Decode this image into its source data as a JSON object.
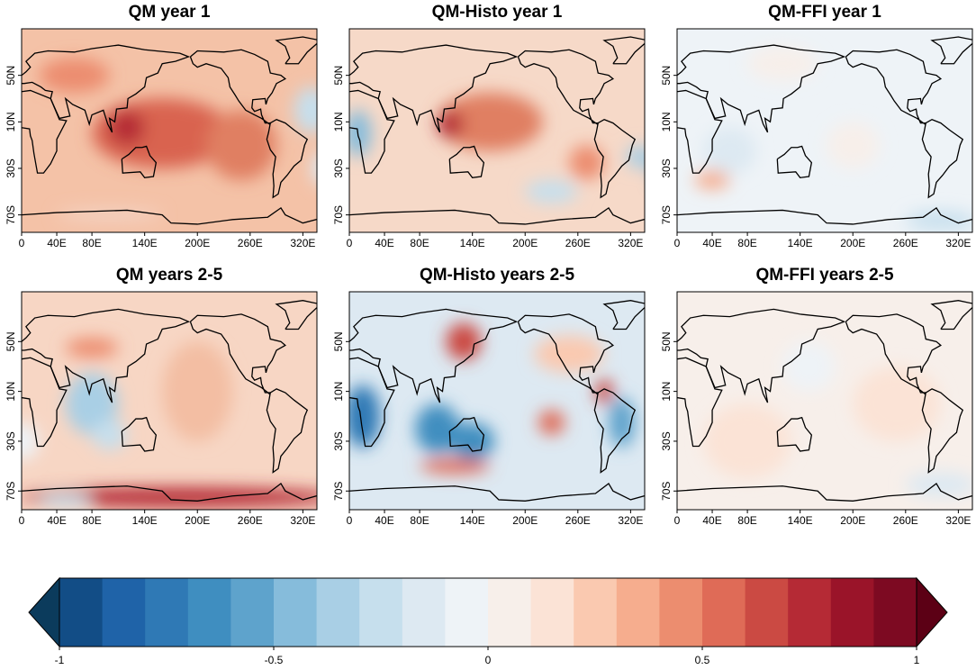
{
  "panels": [
    {
      "title": "QM year 1"
    },
    {
      "title": "QM-Histo year 1"
    },
    {
      "title": "QM-FFI year 1"
    },
    {
      "title": "QM years 2-5"
    },
    {
      "title": "QM-Histo years 2-5"
    },
    {
      "title": "QM-FFI years 2-5"
    }
  ],
  "xlim": [
    0,
    336
  ],
  "ylim": [
    -85,
    90
  ],
  "xticks": [
    0,
    {
      "value": 40,
      "label": "40E"
    },
    {
      "value": 80,
      "label": "80E"
    },
    {
      "value": 140,
      "label": "140E"
    },
    {
      "value": 200,
      "label": "200E"
    },
    {
      "value": 260,
      "label": "260E"
    },
    {
      "value": 320,
      "label": "320E"
    }
  ],
  "yticks": [
    {
      "value": 50,
      "label": "50N"
    },
    {
      "value": 10,
      "label": "10N"
    },
    {
      "value": -30,
      "label": "30S"
    },
    {
      "value": -70,
      "label": "70S"
    }
  ],
  "colorbar": {
    "lim": [
      -1,
      1
    ],
    "ticks": [
      -1,
      -0.5,
      0,
      0.5,
      1
    ],
    "under_color": "#0b3b5c",
    "over_color": "#5c0015",
    "colors": [
      "#124d86",
      "#1f63a8",
      "#2f79b5",
      "#3f8ec0",
      "#5ea3cc",
      "#86bcdb",
      "#a9cfe5",
      "#c6dfed",
      "#dde9f2",
      "#eef3f7",
      "#f7efea",
      "#fbe3d6",
      "#fac9b0",
      "#f6ad8e",
      "#ec8d6f",
      "#df6b57",
      "#cb4a43",
      "#b52a35",
      "#9a1429",
      "#7d0a22"
    ]
  }
}
